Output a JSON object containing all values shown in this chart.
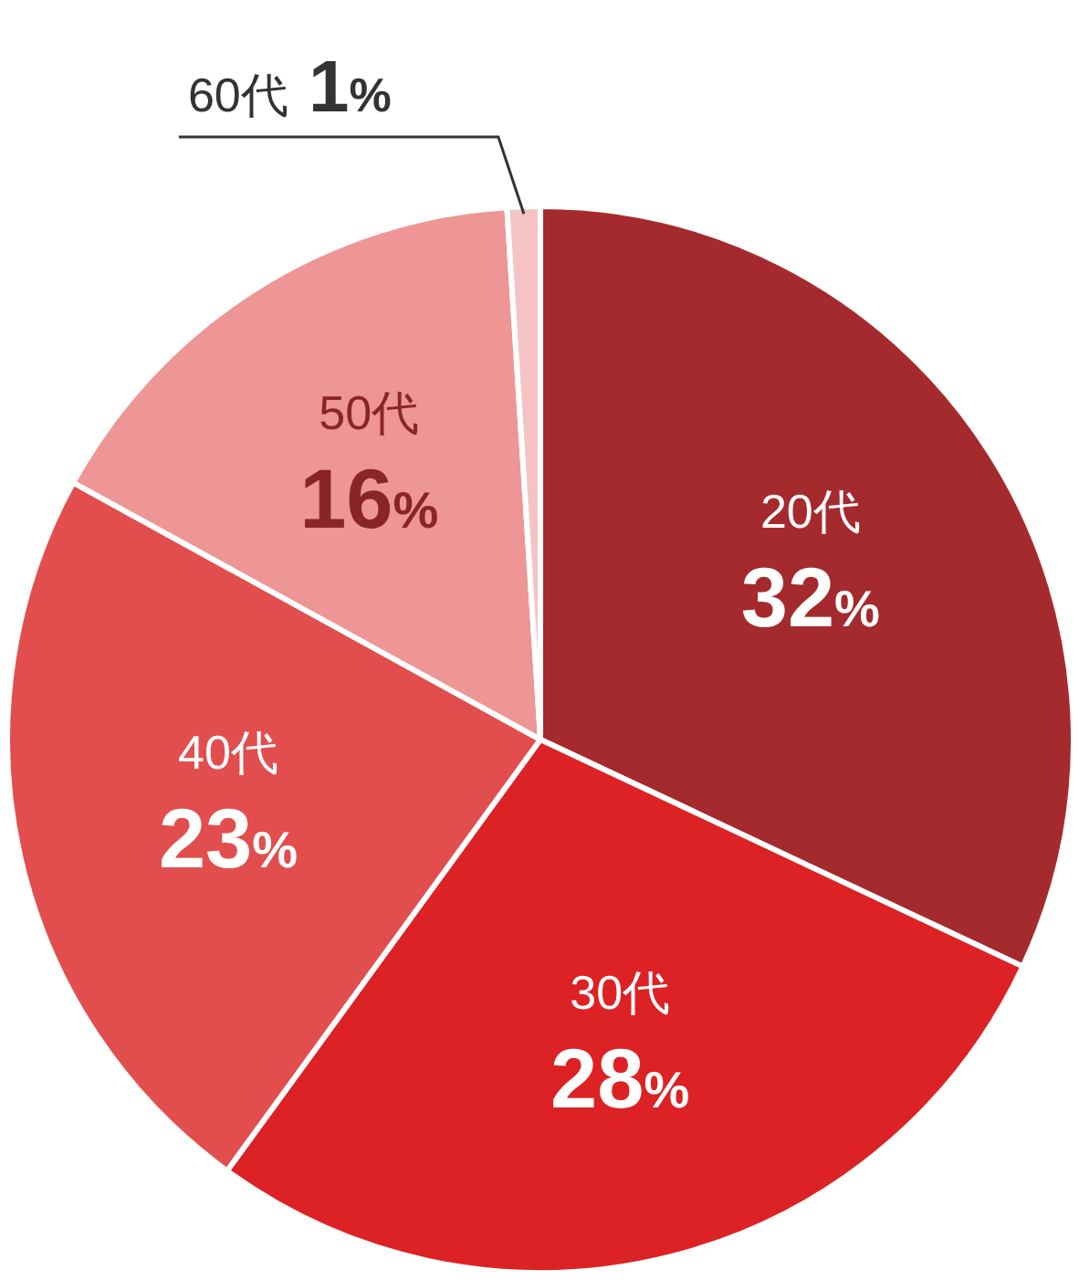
{
  "chart_data": {
    "type": "pie",
    "categories": [
      "20代",
      "30代",
      "40代",
      "50代",
      "60代"
    ],
    "values": [
      32,
      28,
      23,
      16,
      1
    ],
    "value_labels": [
      "32%",
      "28%",
      "23%",
      "16%",
      "1%"
    ],
    "colors": [
      "#a52a2d",
      "#dc2224",
      "#e24e4e",
      "#ee9595",
      "#f5c3c3"
    ],
    "data_labels": true
  }
}
